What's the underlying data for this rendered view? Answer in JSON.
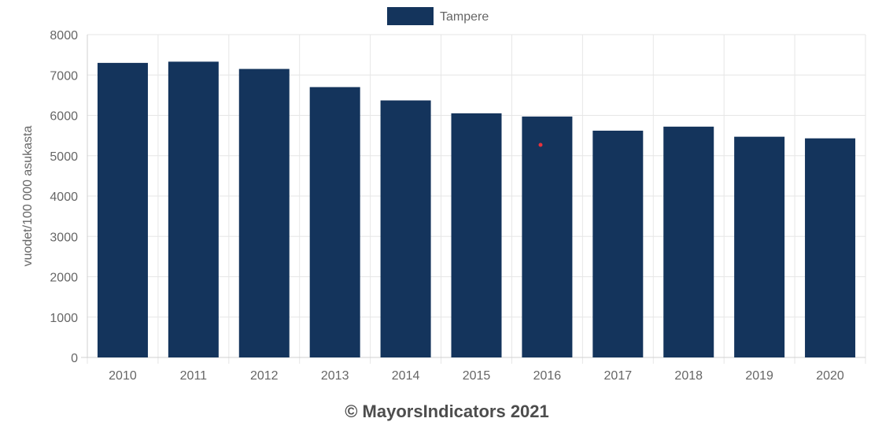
{
  "chart_data": {
    "type": "bar",
    "categories": [
      "2010",
      "2011",
      "2012",
      "2013",
      "2014",
      "2015",
      "2016",
      "2017",
      "2018",
      "2019",
      "2020"
    ],
    "series": [
      {
        "name": "Tampere",
        "values": [
          7300,
          7330,
          7150,
          6700,
          6370,
          6050,
          5970,
          5620,
          5720,
          5470,
          5430
        ]
      }
    ],
    "ylabel": "vuodet/100 000 asukasta",
    "ylim": [
      0,
      8000
    ],
    "yticks": [
      0,
      1000,
      2000,
      3000,
      4000,
      5000,
      6000,
      7000,
      8000
    ],
    "grid": true,
    "legend_position": "top-center",
    "bar_color": "#14345c",
    "grid_color": "#e6e6e6",
    "marker_color": "#e8323c"
  },
  "footer": {
    "copyright": "© MayorsIndicators 2021"
  }
}
